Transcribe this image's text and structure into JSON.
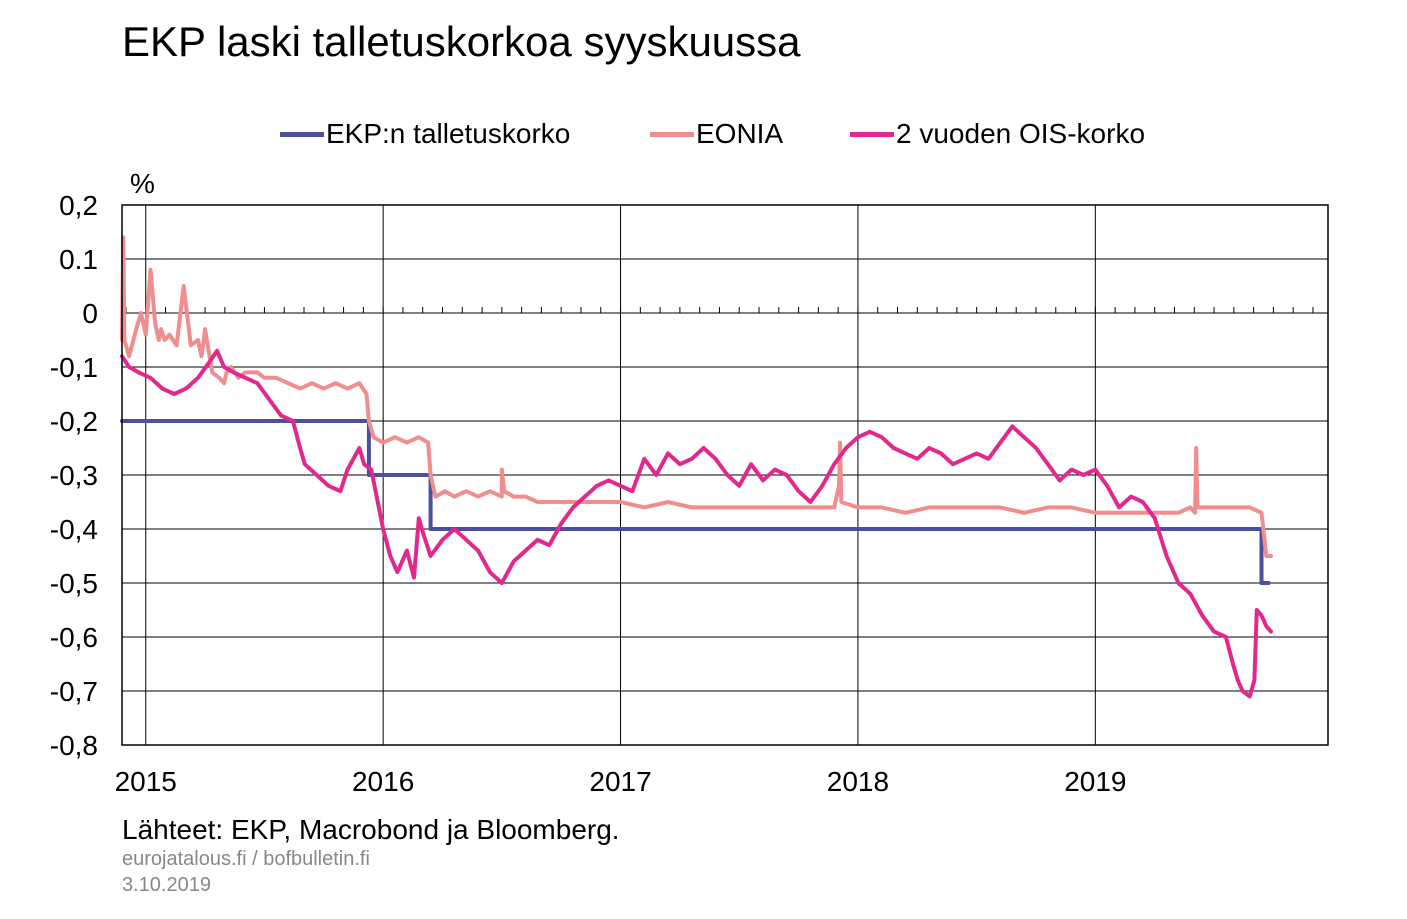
{
  "title": "EKP laski talletuskorkoa syyskuussa",
  "source_note": "Lähteet: EKP, Macrobond ja Bloomberg.",
  "site_note": "eurojatalous.fi  / bofbulletin.fi",
  "date_note": "3.10.2019",
  "colors": {
    "deposit": "#4d4f9c",
    "eonia": "#ef8e8c",
    "ois": "#e0288d",
    "grid": "#000000"
  },
  "chart_data": {
    "type": "line",
    "title": "EKP laski talletuskorkoa syyskuussa",
    "ylabel": "%",
    "xlabel": "",
    "ylim": [
      -0.8,
      0.2
    ],
    "xlim": [
      2014.9,
      2019.98
    ],
    "grid": true,
    "legend_position": "top",
    "y_ticks": [
      "0,2",
      "0.1",
      "0",
      "-0,1",
      "-0,2",
      "-0,3",
      "-0,4",
      "-0,5",
      "-0,6",
      "-0,7",
      "-0,8"
    ],
    "y_tick_values": [
      0.2,
      0.1,
      0,
      -0.1,
      -0.2,
      -0.3,
      -0.4,
      -0.5,
      -0.6,
      -0.7,
      -0.8
    ],
    "x_ticks": [
      "2015",
      "2016",
      "2017",
      "2018",
      "2019"
    ],
    "x_tick_values": [
      2015,
      2016,
      2017,
      2018,
      2019
    ],
    "series": [
      {
        "name": "EKP:n talletuskorko",
        "key": "deposit",
        "x": [
          2014.9,
          2015.94,
          2015.94,
          2016.2,
          2016.2,
          2019.7,
          2019.7,
          2019.73
        ],
        "y": [
          -0.2,
          -0.2,
          -0.3,
          -0.3,
          -0.4,
          -0.4,
          -0.5,
          -0.5
        ]
      },
      {
        "name": "EONIA",
        "key": "eonia",
        "x": [
          2014.9,
          2014.905,
          2014.91,
          2014.93,
          2014.96,
          2014.98,
          2015.0,
          2015.02,
          2015.04,
          2015.055,
          2015.065,
          2015.08,
          2015.1,
          2015.13,
          2015.16,
          2015.19,
          2015.22,
          2015.235,
          2015.25,
          2015.28,
          2015.31,
          2015.33,
          2015.34,
          2015.36,
          2015.39,
          2015.42,
          2015.47,
          2015.5,
          2015.55,
          2015.6,
          2015.65,
          2015.7,
          2015.75,
          2015.8,
          2015.85,
          2015.9,
          2015.93,
          2015.94,
          2015.96,
          2016.0,
          2016.05,
          2016.1,
          2016.15,
          2016.19,
          2016.2,
          2016.22,
          2016.26,
          2016.3,
          2016.35,
          2016.4,
          2016.45,
          2016.5,
          2016.5,
          2016.51,
          2016.55,
          2016.6,
          2016.65,
          2016.7,
          2016.75,
          2016.8,
          2016.85,
          2016.9,
          2017.0,
          2017.1,
          2017.2,
          2017.3,
          2017.4,
          2017.5,
          2017.6,
          2017.7,
          2017.8,
          2017.9,
          2017.92,
          2017.925,
          2017.93,
          2018.0,
          2018.1,
          2018.2,
          2018.3,
          2018.4,
          2018.5,
          2018.6,
          2018.7,
          2018.8,
          2018.9,
          2019.0,
          2019.1,
          2019.2,
          2019.3,
          2019.35,
          2019.4,
          2019.42,
          2019.425,
          2019.43,
          2019.5,
          2019.6,
          2019.65,
          2019.7,
          2019.72,
          2019.74
        ],
        "y": [
          -0.05,
          0.14,
          -0.05,
          -0.08,
          -0.03,
          0.0,
          -0.04,
          0.08,
          -0.02,
          -0.05,
          -0.03,
          -0.05,
          -0.04,
          -0.06,
          0.05,
          -0.06,
          -0.05,
          -0.08,
          -0.03,
          -0.11,
          -0.12,
          -0.13,
          -0.11,
          -0.1,
          -0.12,
          -0.11,
          -0.11,
          -0.12,
          -0.12,
          -0.13,
          -0.14,
          -0.13,
          -0.14,
          -0.13,
          -0.14,
          -0.13,
          -0.15,
          -0.2,
          -0.23,
          -0.24,
          -0.23,
          -0.24,
          -0.23,
          -0.24,
          -0.3,
          -0.34,
          -0.33,
          -0.34,
          -0.33,
          -0.34,
          -0.33,
          -0.34,
          -0.29,
          -0.33,
          -0.34,
          -0.34,
          -0.35,
          -0.35,
          -0.35,
          -0.35,
          -0.35,
          -0.35,
          -0.35,
          -0.36,
          -0.35,
          -0.36,
          -0.36,
          -0.36,
          -0.36,
          -0.36,
          -0.36,
          -0.36,
          -0.32,
          -0.24,
          -0.35,
          -0.36,
          -0.36,
          -0.37,
          -0.36,
          -0.36,
          -0.36,
          -0.36,
          -0.37,
          -0.36,
          -0.36,
          -0.37,
          -0.37,
          -0.37,
          -0.37,
          -0.37,
          -0.36,
          -0.37,
          -0.25,
          -0.36,
          -0.36,
          -0.36,
          -0.36,
          -0.37,
          -0.45,
          -0.45
        ]
      },
      {
        "name": "2 vuoden OIS-korko",
        "key": "ois",
        "x": [
          2014.9,
          2014.93,
          2014.97,
          2015.02,
          2015.07,
          2015.12,
          2015.17,
          2015.22,
          2015.27,
          2015.3,
          2015.33,
          2015.37,
          2015.42,
          2015.47,
          2015.52,
          2015.57,
          2015.62,
          2015.65,
          2015.67,
          2015.72,
          2015.77,
          2015.82,
          2015.85,
          2015.9,
          2015.92,
          2015.95,
          2016.0,
          2016.03,
          2016.06,
          2016.1,
          2016.13,
          2016.15,
          2016.17,
          2016.2,
          2016.25,
          2016.3,
          2016.35,
          2016.4,
          2016.45,
          2016.5,
          2016.55,
          2016.6,
          2016.65,
          2016.7,
          2016.75,
          2016.8,
          2016.85,
          2016.9,
          2016.95,
          2017.0,
          2017.05,
          2017.1,
          2017.15,
          2017.2,
          2017.25,
          2017.3,
          2017.35,
          2017.4,
          2017.45,
          2017.5,
          2017.55,
          2017.6,
          2017.65,
          2017.7,
          2017.75,
          2017.8,
          2017.85,
          2017.9,
          2017.95,
          2018.0,
          2018.05,
          2018.1,
          2018.15,
          2018.2,
          2018.25,
          2018.3,
          2018.35,
          2018.4,
          2018.45,
          2018.5,
          2018.55,
          2018.6,
          2018.65,
          2018.7,
          2018.75,
          2018.8,
          2018.85,
          2018.9,
          2018.95,
          2019.0,
          2019.05,
          2019.1,
          2019.15,
          2019.2,
          2019.25,
          2019.3,
          2019.35,
          2019.4,
          2019.45,
          2019.5,
          2019.55,
          2019.58,
          2019.6,
          2019.62,
          2019.65,
          2019.67,
          2019.68,
          2019.7,
          2019.72,
          2019.74
        ],
        "y": [
          -0.08,
          -0.1,
          -0.11,
          -0.12,
          -0.14,
          -0.15,
          -0.14,
          -0.12,
          -0.09,
          -0.07,
          -0.1,
          -0.11,
          -0.12,
          -0.13,
          -0.16,
          -0.19,
          -0.2,
          -0.25,
          -0.28,
          -0.3,
          -0.32,
          -0.33,
          -0.29,
          -0.25,
          -0.28,
          -0.29,
          -0.4,
          -0.45,
          -0.48,
          -0.44,
          -0.49,
          -0.38,
          -0.41,
          -0.45,
          -0.42,
          -0.4,
          -0.42,
          -0.44,
          -0.48,
          -0.5,
          -0.46,
          -0.44,
          -0.42,
          -0.43,
          -0.39,
          -0.36,
          -0.34,
          -0.32,
          -0.31,
          -0.32,
          -0.33,
          -0.27,
          -0.3,
          -0.26,
          -0.28,
          -0.27,
          -0.25,
          -0.27,
          -0.3,
          -0.32,
          -0.28,
          -0.31,
          -0.29,
          -0.3,
          -0.33,
          -0.35,
          -0.32,
          -0.28,
          -0.25,
          -0.23,
          -0.22,
          -0.23,
          -0.25,
          -0.26,
          -0.27,
          -0.25,
          -0.26,
          -0.28,
          -0.27,
          -0.26,
          -0.27,
          -0.24,
          -0.21,
          -0.23,
          -0.25,
          -0.28,
          -0.31,
          -0.29,
          -0.3,
          -0.29,
          -0.32,
          -0.36,
          -0.34,
          -0.35,
          -0.38,
          -0.45,
          -0.5,
          -0.52,
          -0.56,
          -0.59,
          -0.6,
          -0.65,
          -0.68,
          -0.7,
          -0.71,
          -0.68,
          -0.55,
          -0.56,
          -0.58,
          -0.59
        ]
      }
    ]
  }
}
